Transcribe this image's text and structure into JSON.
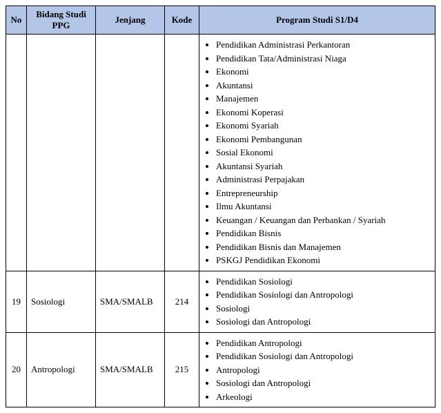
{
  "headers": {
    "no": "No",
    "bidang": "Bidang Studi PPG",
    "jenjang": "Jenjang",
    "kode": "Kode",
    "program": "Program Studi S1/D4"
  },
  "rows": [
    {
      "no": "",
      "bidang": "",
      "jenjang": "",
      "kode": "",
      "programs": [
        "Pendidikan Administrasi Perkantoran",
        "Pendidikan Tata/Administrasi Niaga",
        "Ekonomi",
        "Akuntansi",
        "Manajemen",
        "Ekonomi Koperasi",
        "Ekonomi Syariah",
        "Ekonomi Pembangunan",
        "Sosial Ekonomi",
        "Akuntansi Syariah",
        "Administrasi Perpajakan",
        "Entrepreneurship",
        "Ilmu Akuntansi",
        "Keuangan / Keuangan dan Perbankan / Syariah",
        "Pendidikan Bisnis",
        "Pendidikan Bisnis dan Manajemen",
        "PSKGJ Pendidikan Ekonomi"
      ]
    },
    {
      "no": "19",
      "bidang": "Sosiologi",
      "jenjang": "SMA/SMALB",
      "kode": "214",
      "programs": [
        "Pendidikan Sosiologi",
        "Pendidikan Sosiologi dan Antropologi",
        "Sosiologi",
        "Sosiologi dan Antropologi"
      ]
    },
    {
      "no": "20",
      "bidang": "Antropologi",
      "jenjang": "SMA/SMALB",
      "kode": "215",
      "programs": [
        "Pendidikan Antropologi",
        "Pendidikan Sosiologi dan Antropologi",
        "Antropologi",
        "Sosiologi dan Antropologi",
        "Arkeologi"
      ]
    }
  ]
}
